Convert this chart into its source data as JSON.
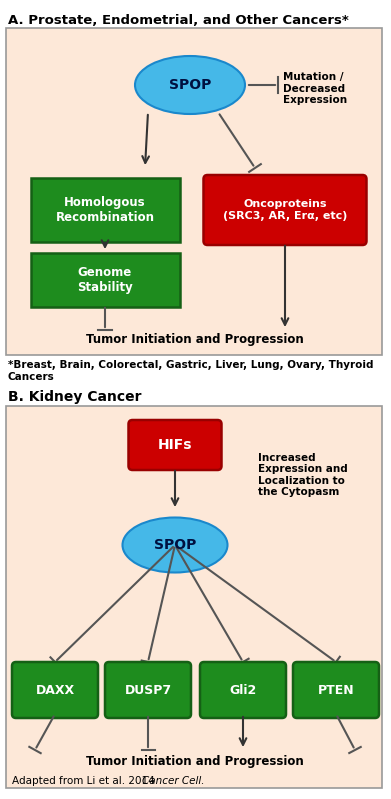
{
  "bg_color": "#fde8d8",
  "white_bg": "#ffffff",
  "title_A": "A. Prostate, Endometrial, and Other Cancers*",
  "title_B": "B. Kidney Cancer",
  "footnote_A": "*Breast, Brain, Colorectal, Gastric, Liver, Lung, Ovary, Thyroid\nCancers",
  "footnote_B_normal": "Adapted from Li et al. 2014 ",
  "footnote_B_italic": "Cancer Cell.",
  "green_color": "#1e8c1e",
  "red_color": "#cc0000",
  "blue_color": "#45b8e8",
  "blue_edge": "#1a88cc",
  "green_edge": "#156015",
  "red_edge": "#990000",
  "line_color": "#555555",
  "arrow_color": "#333333",
  "text_white": "#ffffff",
  "text_dark_blue": "#001040"
}
